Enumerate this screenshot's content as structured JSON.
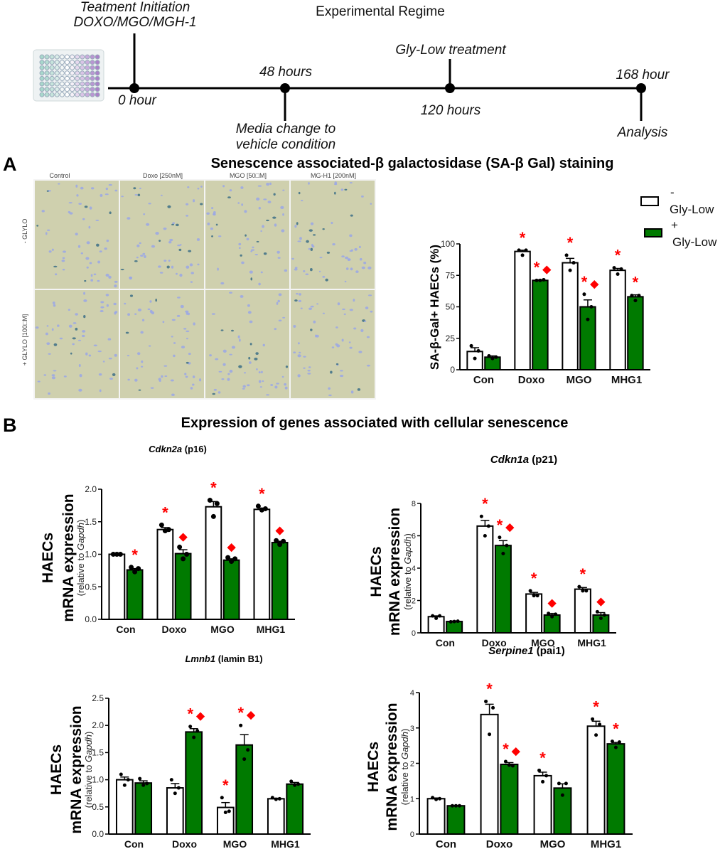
{
  "timeline": {
    "title": "Experimental Regime",
    "events": [
      {
        "label_top_1": "Teatment Initiation",
        "label_top_2": "DOXO/MGO/MGH-1",
        "time": "0 hour"
      },
      {
        "time": "48 hours",
        "label_bottom_1": "Media change to",
        "label_bottom_2": "vehicle condition"
      },
      {
        "label_top": "Gly-Low treatment",
        "time": "120 hours"
      },
      {
        "time": "168 hour",
        "label_bottom": "Analysis"
      }
    ]
  },
  "panel_a": {
    "letter": "A",
    "title": "Senescence associated-β galactosidase (SA-β Gal) staining",
    "micrograph_columns": [
      "Control",
      "Doxo [250nM]",
      "MGO [50□M]",
      "MG-H1 [200nM]"
    ],
    "micrograph_rows": [
      "- GLYLO",
      "+ GLYLO [100□M]"
    ],
    "legend": [
      {
        "sign": "-",
        "label": "Gly-Low",
        "color": "#ffffff"
      },
      {
        "sign": "+",
        "label": "Gly-Low",
        "color": "#007a00"
      }
    ]
  },
  "panel_b": {
    "letter": "B",
    "title": "Expression of genes associated with cellular senescence"
  },
  "colors": {
    "minus": "#ffffff",
    "plus": "#007a00",
    "significance": "#ff0000"
  },
  "chart_data": [
    {
      "type": "bar",
      "title": "",
      "ylabel": "SA-β-Gal+ HAECs (%)",
      "categories": [
        "Con",
        "Doxo",
        "MGO",
        "MHG1"
      ],
      "ylim": [
        0,
        100
      ],
      "yticks": [
        "0",
        "25",
        "50",
        "75",
        "100"
      ],
      "series": [
        {
          "name": "- Gly-Low",
          "values": [
            14.5,
            94,
            85,
            79
          ],
          "sem": [
            3,
            1,
            3.5,
            1.5
          ],
          "points": [
            [
              19,
              9,
              15
            ],
            [
              95,
              91,
              95
            ],
            [
              91,
              79,
              85
            ],
            [
              81,
              76,
              80
            ]
          ],
          "annotations": [
            "",
            "*",
            "*",
            "*"
          ]
        },
        {
          "name": "+ Gly-Low",
          "values": [
            10,
            71,
            50,
            58
          ],
          "sem": [
            1,
            0.5,
            5.5,
            1.5
          ],
          "points": [
            [
              11,
              9,
              10
            ],
            [
              71,
              71,
              71.5
            ],
            [
              60,
              40,
              50
            ],
            [
              59,
              55,
              59
            ]
          ],
          "annotations": [
            "",
            "*◆",
            "*◆",
            "*"
          ]
        }
      ]
    },
    {
      "type": "bar",
      "title_italic": "Cdkn2a",
      "title_rest": " (p16)",
      "ylabel_1": "HAECs",
      "ylabel_2": "mRNA expression",
      "ylabel_sub": "(relative to ",
      "ylabel_sub_it": "Gapdh",
      "ylabel_sub_end": ")",
      "categories": [
        "Con",
        "Doxo",
        "MGO",
        "MHG1"
      ],
      "ylim": [
        0,
        2
      ],
      "yticks": [
        "0.0",
        "0.5",
        "1.0",
        "1.5",
        "2.0"
      ],
      "series": [
        {
          "values": [
            1.0,
            1.38,
            1.73,
            1.69
          ],
          "sem": [
            0.005,
            0.03,
            0.08,
            0.02
          ],
          "points": [
            [
              1,
              1,
              1
            ],
            [
              1.45,
              1.36,
              1.38
            ],
            [
              1.83,
              1.58,
              1.78
            ],
            [
              1.74,
              1.68,
              1.7
            ]
          ],
          "annotations": [
            "",
            "*",
            "*",
            "*"
          ]
        },
        {
          "values": [
            0.76,
            1.01,
            0.91,
            1.18
          ],
          "sem": [
            0.02,
            0.06,
            0.02,
            0.02
          ],
          "points": [
            [
              0.8,
              0.73,
              0.78
            ],
            [
              1.11,
              0.93,
              1.0
            ],
            [
              0.95,
              0.89,
              0.93
            ],
            [
              1.21,
              1.15,
              1.2
            ]
          ],
          "annotations": [
            "*",
            "◆",
            "◆",
            "◆"
          ]
        }
      ]
    },
    {
      "type": "bar",
      "title_italic": "Cdkn1a",
      "title_rest": " (p21)",
      "ylabel_1": "HAECs",
      "ylabel_2": "mRNA expression",
      "ylabel_sub": "(relative to ",
      "ylabel_sub_it": "Gapdh",
      "ylabel_sub_end": ")",
      "categories": [
        "Con",
        "Doxo",
        "MGO",
        "MHG1"
      ],
      "ylim": [
        0,
        8
      ],
      "yticks": [
        "0",
        "2",
        "4",
        "6",
        "8"
      ],
      "series": [
        {
          "values": [
            1.0,
            6.6,
            2.4,
            2.7
          ],
          "sem": [
            0.05,
            0.35,
            0.1,
            0.1
          ],
          "points": [
            [
              1.05,
              0.9,
              1.05
            ],
            [
              7.2,
              6.0,
              6.6
            ],
            [
              2.6,
              2.3,
              2.3
            ],
            [
              2.85,
              2.6,
              2.6
            ]
          ],
          "annotations": [
            "",
            "*",
            "*",
            "*"
          ]
        },
        {
          "values": [
            0.7,
            5.4,
            1.1,
            1.1
          ],
          "sem": [
            0.03,
            0.3,
            0.1,
            0.15
          ],
          "points": [
            [
              0.68,
              0.7,
              0.72
            ],
            [
              5.9,
              4.9,
              5.4
            ],
            [
              1.2,
              1.0,
              1.15
            ],
            [
              1.3,
              0.9,
              1.1
            ]
          ],
          "annotations": [
            "",
            "*◆",
            "◆",
            "◆"
          ]
        }
      ]
    },
    {
      "type": "bar",
      "title_italic": "Lmnb1",
      "title_rest": " (lamin B1)",
      "ylabel_1": "HAECs",
      "ylabel_2": "mRNA expression",
      "ylabel_sub": "(relative to ",
      "ylabel_sub_it": "Gapdh",
      "ylabel_sub_end": ")",
      "categories": [
        "Con",
        "Doxo",
        "MGO",
        "MHG1"
      ],
      "ylim": [
        0,
        2.5
      ],
      "yticks": [
        "0.0",
        "0.5",
        "1.0",
        "1.5",
        "2.0",
        "2.5"
      ],
      "series": [
        {
          "values": [
            1.0,
            0.85,
            0.49,
            0.65
          ],
          "sem": [
            0.05,
            0.08,
            0.09,
            0.01
          ],
          "points": [
            [
              1.1,
              0.9,
              1.0
            ],
            [
              1.0,
              0.75,
              0.85
            ],
            [
              0.67,
              0.4,
              0.42
            ],
            [
              0.67,
              0.64,
              0.65
            ]
          ],
          "annotations": [
            "",
            "",
            "*",
            ""
          ]
        },
        {
          "values": [
            0.94,
            1.88,
            1.64,
            0.92
          ],
          "sem": [
            0.04,
            0.06,
            0.19,
            0.03
          ],
          "points": [
            [
              1.02,
              0.9,
              0.93
            ],
            [
              1.98,
              1.78,
              1.9
            ],
            [
              2.0,
              1.38,
              1.55
            ],
            [
              0.97,
              0.9,
              0.92
            ]
          ],
          "annotations": [
            "",
            "*◆",
            "*◆",
            ""
          ]
        }
      ]
    },
    {
      "type": "bar",
      "title_italic": "Serpine1",
      "title_rest": " (pai1)",
      "ylabel_1": "HAECs",
      "ylabel_2": "mRNA expression",
      "ylabel_sub": "(relative to ",
      "ylabel_sub_it": "Gapdh",
      "ylabel_sub_end": ")",
      "categories": [
        "Con",
        "Doxo",
        "MGO",
        "MHG1"
      ],
      "ylim": [
        0,
        4
      ],
      "yticks": [
        "0",
        "1",
        "2",
        "3",
        "4"
      ],
      "series": [
        {
          "values": [
            1.0,
            3.38,
            1.65,
            3.05
          ],
          "sem": [
            0.02,
            0.29,
            0.1,
            0.14
          ],
          "points": [
            [
              1.03,
              0.98,
              1.0
            ],
            [
              3.75,
              2.82,
              3.57
            ],
            [
              1.8,
              1.48,
              1.65
            ],
            [
              3.25,
              2.8,
              3.1
            ]
          ],
          "annotations": [
            "",
            "*",
            "*",
            "*"
          ]
        },
        {
          "values": [
            0.8,
            1.97,
            1.3,
            2.55
          ],
          "sem": [
            0.005,
            0.05,
            0.12,
            0.04
          ],
          "points": [
            [
              0.8,
              0.8,
              0.8
            ],
            [
              2.05,
              1.95,
              1.93
            ],
            [
              1.43,
              1.1,
              1.43
            ],
            [
              2.62,
              2.45,
              2.6
            ]
          ],
          "annotations": [
            "",
            "*◆",
            "",
            "*"
          ]
        }
      ]
    }
  ]
}
